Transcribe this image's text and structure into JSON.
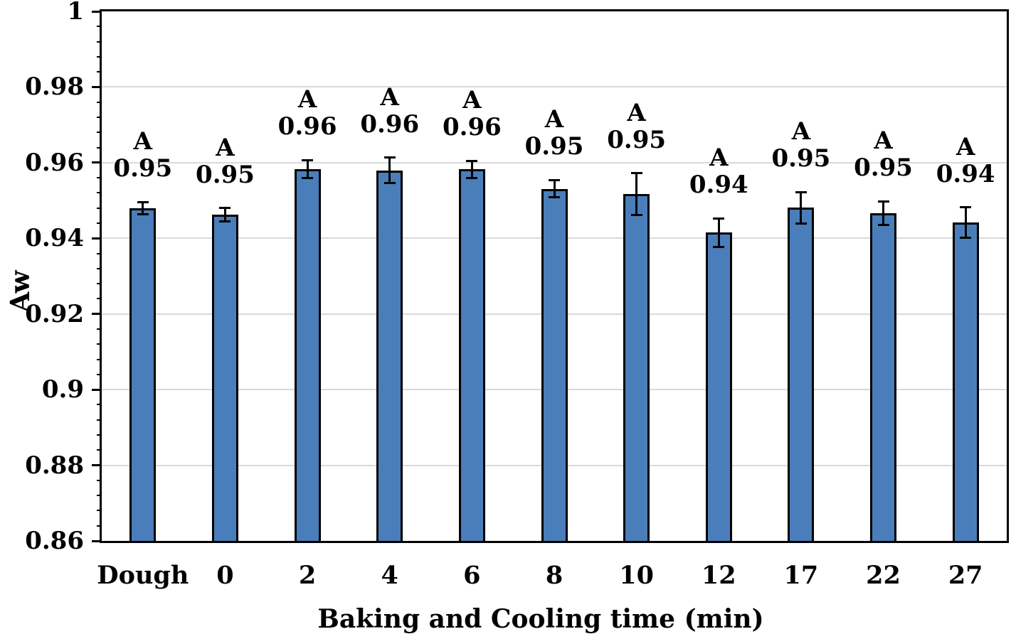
{
  "chart_data": {
    "type": "bar",
    "title": "",
    "xlabel": "Baking and Cooling time (min)",
    "ylabel": "Aw",
    "categories": [
      "Dough",
      "0",
      "2",
      "4",
      "6",
      "8",
      "10",
      "12",
      "17",
      "22",
      "27"
    ],
    "values": [
      0.948,
      0.9462,
      0.9583,
      0.958,
      0.9582,
      0.9531,
      0.9517,
      0.9415,
      0.9481,
      0.9467,
      0.9442
    ],
    "errors": [
      0.0016,
      0.0018,
      0.0024,
      0.0033,
      0.0023,
      0.0023,
      0.0055,
      0.0038,
      0.0041,
      0.0031,
      0.004
    ],
    "data_labels": [
      {
        "letter": "A",
        "value": "0.95"
      },
      {
        "letter": "A",
        "value": "0.95"
      },
      {
        "letter": "A",
        "value": "0.96"
      },
      {
        "letter": "A",
        "value": "0.96"
      },
      {
        "letter": "A",
        "value": "0.96"
      },
      {
        "letter": "A",
        "value": "0.95"
      },
      {
        "letter": "A",
        "value": "0.95"
      },
      {
        "letter": "A",
        "value": "0.94"
      },
      {
        "letter": "A",
        "value": "0.95"
      },
      {
        "letter": "A",
        "value": "0.95"
      },
      {
        "letter": "A",
        "value": "0.94"
      }
    ],
    "ylim": [
      0.86,
      1.0
    ],
    "ytick_step": 0.02,
    "yminor_step": 0.004,
    "ytick_labels": [
      "0.86",
      "0.88",
      "0.9",
      "0.92",
      "0.94",
      "0.96",
      "0.98",
      "1"
    ],
    "grid": true,
    "legend": "none",
    "colors": {
      "bar_fill": "#4A7EBB",
      "bar_border": "#000000",
      "gridline": "#D9D9D9",
      "error_bar": "#000000",
      "text": "#000000"
    }
  }
}
